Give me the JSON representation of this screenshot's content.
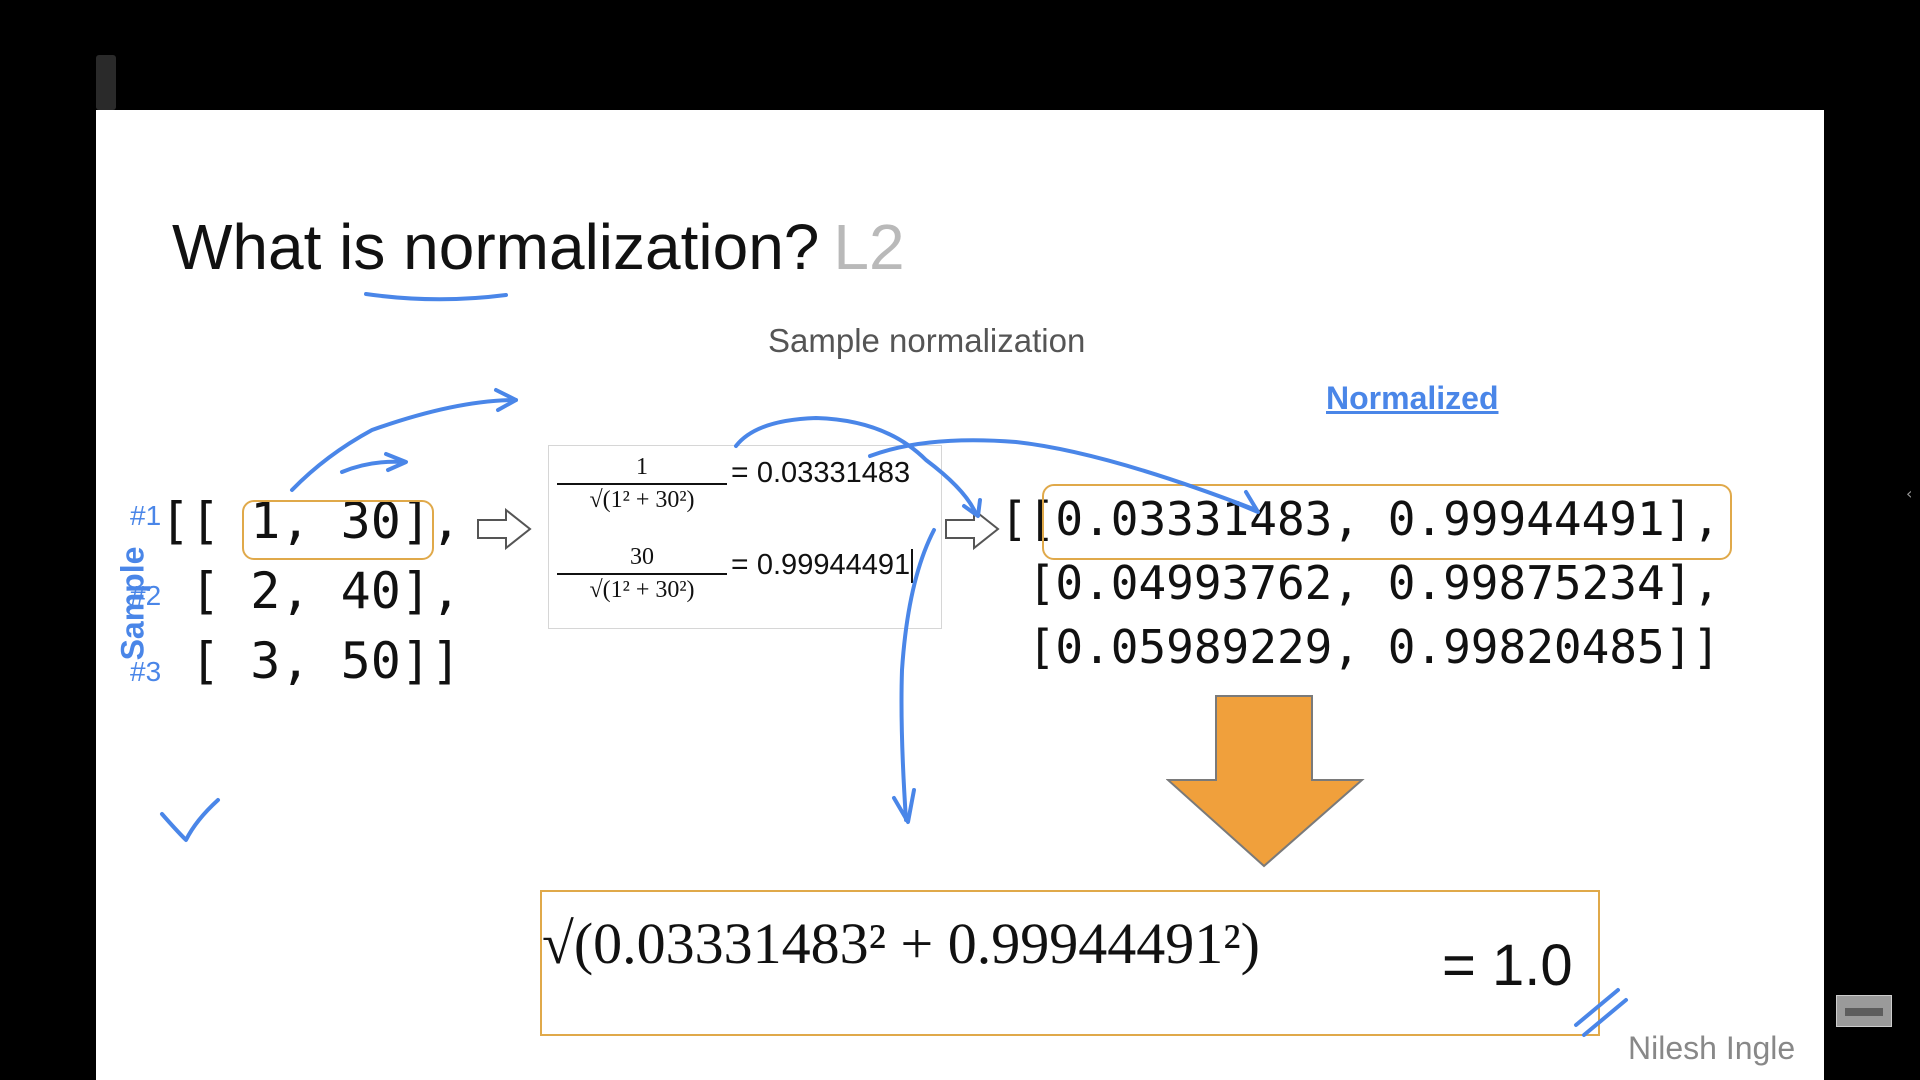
{
  "title": {
    "main": "What is normalization?",
    "suffix": "L2"
  },
  "subtitle": "Sample normalization",
  "normalized_label": "Normalized",
  "sample_label": "Sample",
  "sample_ids": [
    "#1",
    "#2",
    "#3"
  ],
  "input_rows": [
    "[[ 1, 30],",
    " [ 2, 40],",
    " [ 3, 50]]"
  ],
  "formula": {
    "f1": {
      "num": "1",
      "den": "√(1² + 30²)",
      "eq": "=",
      "value": "0.03331483"
    },
    "f2": {
      "num": "30",
      "den": "√(1² + 30²)",
      "eq": "=",
      "value": "0.99944491"
    }
  },
  "output_rows": [
    "[[0.03331483, 0.99944491],",
    " [0.04993762, 0.99875234],",
    " [0.05989229, 0.99820485]]"
  ],
  "bottom_formula": {
    "expr": "√(0.03331483² + 0.99944491²)",
    "eq": "= 1.0"
  },
  "author": "Nilesh Ingle",
  "colors": {
    "ink": "#4a86e8",
    "highlight": "#e0a94a",
    "arrow": "#f0a03c"
  }
}
